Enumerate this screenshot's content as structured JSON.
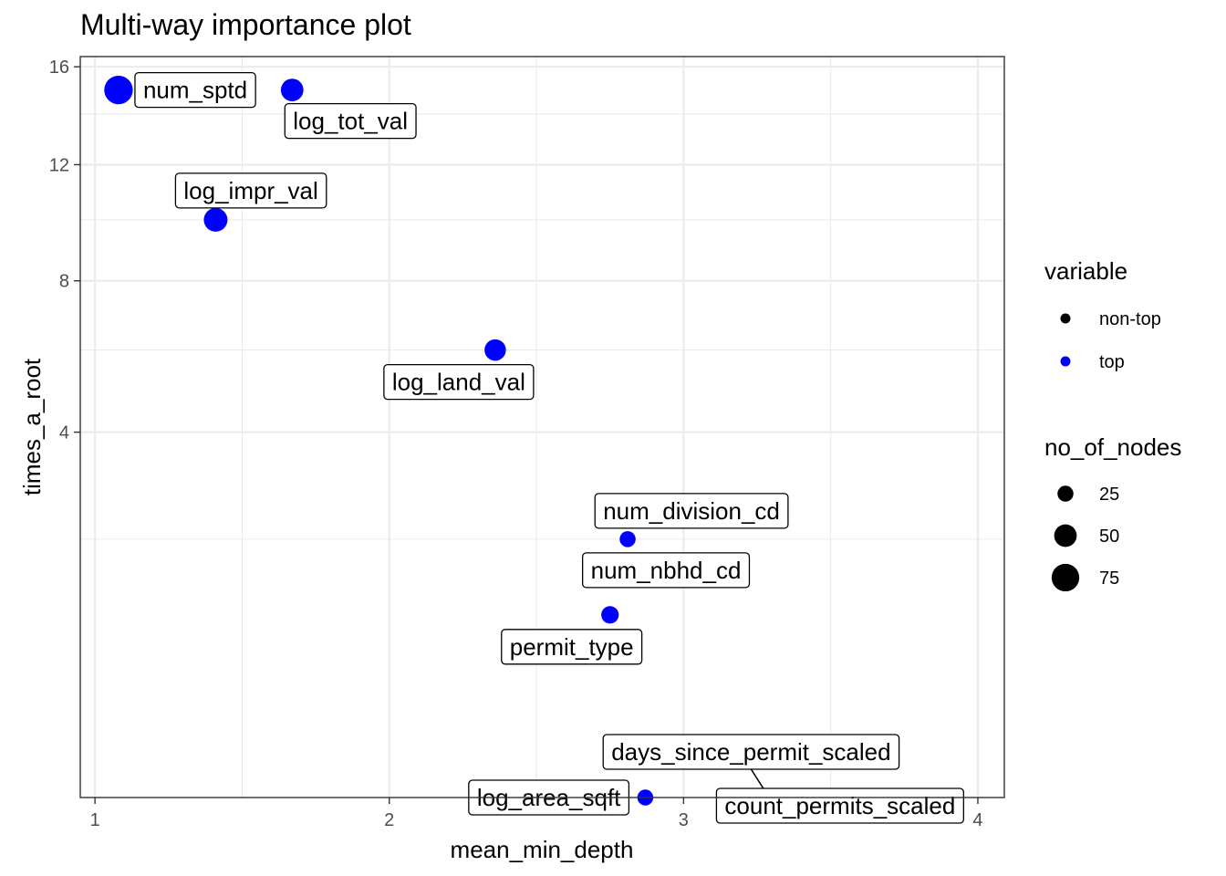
{
  "chart_data": {
    "type": "scatter",
    "title": "Multi-way importance plot",
    "xlabel": "mean_min_depth",
    "ylabel": "times_a_root",
    "x_scale": "linear",
    "y_scale": "sqrt",
    "xlim": [
      0.95,
      4.09
    ],
    "ylim": [
      0,
      16.45
    ],
    "x_ticks": [
      1,
      2,
      3,
      4
    ],
    "y_ticks": [
      4,
      8,
      12,
      16
    ],
    "x_minor_ticks": [
      1.5,
      2.5,
      3.5
    ],
    "y_minor_ticks": [
      2,
      6,
      10,
      14
    ],
    "grid": true,
    "legend_placement": "right",
    "legend": {
      "variable": {
        "title": "variable",
        "entries": [
          {
            "label": "non-top",
            "color": "#000000"
          },
          {
            "label": "top",
            "color": "#0000ff"
          }
        ]
      },
      "size": {
        "title": "no_of_nodes",
        "entries": [
          {
            "label": "25",
            "value": 25
          },
          {
            "label": "50",
            "value": 50
          },
          {
            "label": "75",
            "value": 75
          }
        ]
      }
    },
    "points": [
      {
        "variable": "num_sptd",
        "x": 1.08,
        "y": 15,
        "no_of_nodes": 80,
        "group": "top",
        "label_dir": "right"
      },
      {
        "variable": "log_tot_val",
        "x": 1.67,
        "y": 15,
        "no_of_nodes": 50,
        "group": "top",
        "label_dir": "below-right"
      },
      {
        "variable": "log_impr_val",
        "x": 1.41,
        "y": 10,
        "no_of_nodes": 55,
        "group": "top",
        "label_dir": "above-right"
      },
      {
        "variable": "log_land_val",
        "x": 2.36,
        "y": 6,
        "no_of_nodes": 45,
        "group": "top",
        "label_dir": "below-left"
      },
      {
        "variable": "num_division_cd",
        "x": 2.81,
        "y": 2,
        "no_of_nodes": 25,
        "group": "top",
        "label_dir": "above-left"
      },
      {
        "variable": "num_nbhd_cd",
        "x": 2.81,
        "y": 2,
        "no_of_nodes": 25,
        "group": "top",
        "label_dir": "below"
      },
      {
        "variable": "permit_type",
        "x": 2.75,
        "y": 1,
        "no_of_nodes": 30,
        "group": "top",
        "label_dir": "below-left"
      },
      {
        "variable": "log_area_sqft",
        "x": 2.87,
        "y": 0,
        "no_of_nodes": 25,
        "group": "top",
        "label_dir": "left"
      },
      {
        "variable": "days_since_permit_scaled",
        "x": 2.87,
        "y": 0,
        "no_of_nodes": 25,
        "group": "top",
        "label_dir": "above"
      },
      {
        "variable": "count_permits_scaled",
        "x": 2.87,
        "y": 0,
        "no_of_nodes": 25,
        "group": "top",
        "label_dir": "right"
      }
    ]
  }
}
